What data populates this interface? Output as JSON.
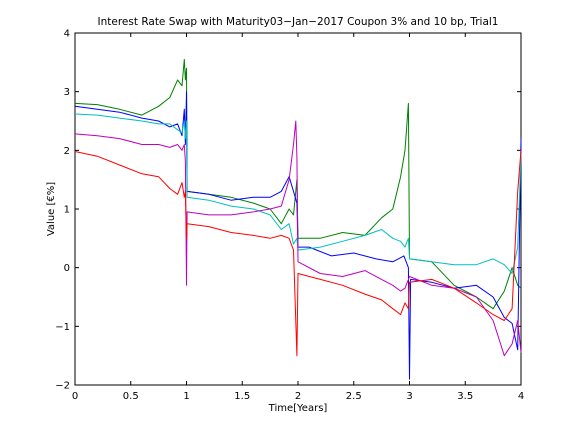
{
  "chart_data": {
    "type": "line",
    "title": "Interest Rate Swap with Maturity03−Jan−2017 Coupon 3% and 10 bp, Trial1",
    "xlabel": "Time[Years]",
    "ylabel": "Value [€%]",
    "xlim": [
      0,
      4
    ],
    "ylim": [
      -2,
      4
    ],
    "x_ticks": [
      "0",
      "0.5",
      "1",
      "1.5",
      "2",
      "2.5",
      "3",
      "3.5",
      "4"
    ],
    "y_ticks": [
      "−2",
      "−1",
      "0",
      "1",
      "2",
      "3",
      "4"
    ],
    "grid": false,
    "legend": "none",
    "series": [
      {
        "color": "#008000",
        "points": [
          [
            0,
            2.8
          ],
          [
            0.2,
            2.78
          ],
          [
            0.4,
            2.7
          ],
          [
            0.6,
            2.6
          ],
          [
            0.75,
            2.75
          ],
          [
            0.85,
            2.9
          ],
          [
            0.92,
            3.2
          ],
          [
            0.96,
            3.1
          ],
          [
            0.98,
            3.55
          ],
          [
            0.99,
            3.2
          ],
          [
            1.0,
            3.4
          ],
          [
            1.005,
            1.3
          ],
          [
            1.2,
            1.25
          ],
          [
            1.4,
            1.2
          ],
          [
            1.6,
            1.1
          ],
          [
            1.75,
            1.0
          ],
          [
            1.85,
            0.75
          ],
          [
            1.92,
            1.0
          ],
          [
            1.96,
            0.9
          ],
          [
            1.99,
            1.5
          ],
          [
            2.0,
            0.5
          ],
          [
            2.2,
            0.5
          ],
          [
            2.4,
            0.6
          ],
          [
            2.6,
            0.55
          ],
          [
            2.75,
            0.85
          ],
          [
            2.85,
            1.0
          ],
          [
            2.92,
            1.55
          ],
          [
            2.96,
            2.0
          ],
          [
            2.99,
            2.8
          ],
          [
            3.0,
            0.15
          ],
          [
            3.2,
            0.1
          ],
          [
            3.4,
            -0.3
          ],
          [
            3.6,
            -0.5
          ],
          [
            3.75,
            -0.7
          ],
          [
            3.85,
            -0.4
          ],
          [
            3.92,
            0.0
          ],
          [
            3.97,
            -0.3
          ],
          [
            4.0,
            -0.35
          ]
        ]
      },
      {
        "color": "#0000ff",
        "points": [
          [
            0,
            2.75
          ],
          [
            0.2,
            2.7
          ],
          [
            0.4,
            2.65
          ],
          [
            0.6,
            2.55
          ],
          [
            0.75,
            2.5
          ],
          [
            0.85,
            2.4
          ],
          [
            0.92,
            2.45
          ],
          [
            0.96,
            2.25
          ],
          [
            0.98,
            2.7
          ],
          [
            0.99,
            2.1
          ],
          [
            1.0,
            3.0
          ],
          [
            1.005,
            1.3
          ],
          [
            1.2,
            1.25
          ],
          [
            1.4,
            1.15
          ],
          [
            1.6,
            1.2
          ],
          [
            1.75,
            1.2
          ],
          [
            1.85,
            1.3
          ],
          [
            1.92,
            1.55
          ],
          [
            1.96,
            1.3
          ],
          [
            1.99,
            1.1
          ],
          [
            2.0,
            0.35
          ],
          [
            2.1,
            0.35
          ],
          [
            2.3,
            0.2
          ],
          [
            2.5,
            0.25
          ],
          [
            2.7,
            0.15
          ],
          [
            2.85,
            0.1
          ],
          [
            2.95,
            0.2
          ],
          [
            2.99,
            0.0
          ],
          [
            3.0,
            -1.9
          ],
          [
            3.01,
            -0.2
          ],
          [
            3.2,
            -0.25
          ],
          [
            3.4,
            -0.35
          ],
          [
            3.6,
            -0.3
          ],
          [
            3.75,
            -0.5
          ],
          [
            3.85,
            -0.85
          ],
          [
            3.92,
            -0.95
          ],
          [
            3.97,
            -1.4
          ],
          [
            4.0,
            2.2
          ]
        ]
      },
      {
        "color": "#00bfbf",
        "points": [
          [
            0,
            2.62
          ],
          [
            0.2,
            2.6
          ],
          [
            0.4,
            2.55
          ],
          [
            0.6,
            2.5
          ],
          [
            0.75,
            2.45
          ],
          [
            0.85,
            2.45
          ],
          [
            0.92,
            2.35
          ],
          [
            0.96,
            2.3
          ],
          [
            0.98,
            2.5
          ],
          [
            0.99,
            2.2
          ],
          [
            1.0,
            2.5
          ],
          [
            1.005,
            1.2
          ],
          [
            1.2,
            1.15
          ],
          [
            1.4,
            1.05
          ],
          [
            1.6,
            1.0
          ],
          [
            1.75,
            0.9
          ],
          [
            1.85,
            0.65
          ],
          [
            1.92,
            0.75
          ],
          [
            1.96,
            0.4
          ],
          [
            1.99,
            0.5
          ],
          [
            2.0,
            0.3
          ],
          [
            2.2,
            0.35
          ],
          [
            2.4,
            0.45
          ],
          [
            2.6,
            0.55
          ],
          [
            2.75,
            0.65
          ],
          [
            2.85,
            0.5
          ],
          [
            2.92,
            0.45
          ],
          [
            2.96,
            0.35
          ],
          [
            2.99,
            0.5
          ],
          [
            3.0,
            0.15
          ],
          [
            3.2,
            0.1
          ],
          [
            3.4,
            0.05
          ],
          [
            3.6,
            0.05
          ],
          [
            3.75,
            0.15
          ],
          [
            3.85,
            0.05
          ],
          [
            3.92,
            -0.1
          ],
          [
            3.97,
            0.35
          ],
          [
            4.0,
            1.95
          ]
        ]
      },
      {
        "color": "#bf00bf",
        "points": [
          [
            0,
            2.28
          ],
          [
            0.2,
            2.25
          ],
          [
            0.4,
            2.2
          ],
          [
            0.6,
            2.1
          ],
          [
            0.75,
            2.1
          ],
          [
            0.85,
            2.05
          ],
          [
            0.92,
            2.1
          ],
          [
            0.96,
            2.0
          ],
          [
            0.98,
            2.1
          ],
          [
            0.99,
            1.8
          ],
          [
            1.0,
            -0.3
          ],
          [
            1.005,
            0.95
          ],
          [
            1.2,
            0.9
          ],
          [
            1.4,
            0.9
          ],
          [
            1.6,
            0.95
          ],
          [
            1.75,
            1.0
          ],
          [
            1.85,
            1.05
          ],
          [
            1.92,
            1.5
          ],
          [
            1.96,
            2.1
          ],
          [
            1.98,
            2.5
          ],
          [
            1.99,
            1.9
          ],
          [
            2.0,
            0.1
          ],
          [
            2.2,
            -0.1
          ],
          [
            2.4,
            -0.15
          ],
          [
            2.6,
            -0.05
          ],
          [
            2.75,
            -0.2
          ],
          [
            2.85,
            -0.3
          ],
          [
            2.92,
            -0.4
          ],
          [
            2.96,
            -0.35
          ],
          [
            2.99,
            -0.2
          ],
          [
            3.0,
            -0.15
          ],
          [
            3.2,
            -0.3
          ],
          [
            3.4,
            -0.35
          ],
          [
            3.6,
            -0.5
          ],
          [
            3.75,
            -0.9
          ],
          [
            3.85,
            -1.5
          ],
          [
            3.92,
            -1.3
          ],
          [
            3.97,
            -0.9
          ],
          [
            4.0,
            -1.45
          ]
        ]
      },
      {
        "color": "#ff0000",
        "points": [
          [
            0,
            1.98
          ],
          [
            0.2,
            1.9
          ],
          [
            0.4,
            1.75
          ],
          [
            0.6,
            1.6
          ],
          [
            0.75,
            1.55
          ],
          [
            0.85,
            1.35
          ],
          [
            0.92,
            1.25
          ],
          [
            0.96,
            1.45
          ],
          [
            0.98,
            1.2
          ],
          [
            0.99,
            1.3
          ],
          [
            1.0,
            0.5
          ],
          [
            1.005,
            0.75
          ],
          [
            1.2,
            0.7
          ],
          [
            1.4,
            0.6
          ],
          [
            1.6,
            0.55
          ],
          [
            1.75,
            0.5
          ],
          [
            1.85,
            0.55
          ],
          [
            1.92,
            0.5
          ],
          [
            1.96,
            0.3
          ],
          [
            1.99,
            -1.5
          ],
          [
            2.0,
            -0.1
          ],
          [
            2.2,
            -0.2
          ],
          [
            2.4,
            -0.3
          ],
          [
            2.6,
            -0.45
          ],
          [
            2.75,
            -0.55
          ],
          [
            2.85,
            -0.7
          ],
          [
            2.92,
            -0.8
          ],
          [
            2.96,
            -0.6
          ],
          [
            2.99,
            -0.7
          ],
          [
            3.0,
            -0.25
          ],
          [
            3.2,
            -0.2
          ],
          [
            3.4,
            -0.35
          ],
          [
            3.6,
            -0.6
          ],
          [
            3.75,
            -0.8
          ],
          [
            3.85,
            -0.9
          ],
          [
            3.92,
            -0.7
          ],
          [
            3.97,
            1.3
          ],
          [
            4.0,
            2.0
          ]
        ]
      }
    ]
  }
}
